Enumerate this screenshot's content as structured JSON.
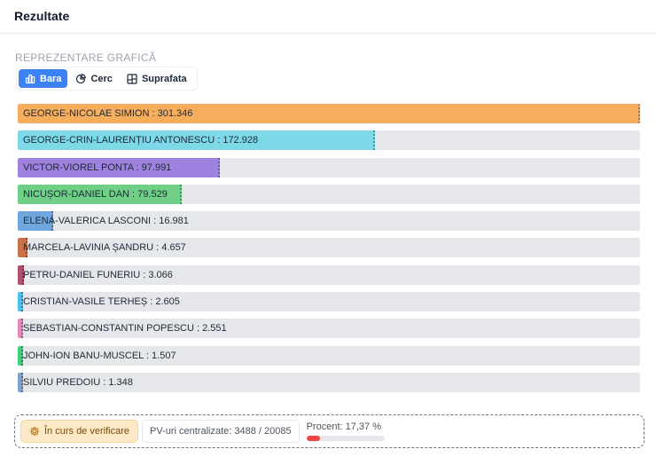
{
  "header": {
    "title": "Rezultate"
  },
  "section": {
    "label": "REPREZENTARE GRAFICĂ"
  },
  "tabs": [
    {
      "label": "Bara",
      "icon": "bar-chart-icon",
      "active": true
    },
    {
      "label": "Cerc",
      "icon": "pie-chart-icon",
      "active": false
    },
    {
      "label": "Suprafata",
      "icon": "treemap-icon",
      "active": false
    }
  ],
  "chart_data": {
    "type": "bar",
    "orientation": "horizontal",
    "max": 301346,
    "categories": [
      "GEORGE-NICOLAE SIMION",
      "GEORGE-CRIN-LAURENȚIU ANTONESCU",
      "VICTOR-VIOREL PONTA",
      "NICUȘOR-DANIEL DAN",
      "ELENA-VALERICA LASCONI",
      "MARCELA-LAVINIA ȘANDRU",
      "PETRU-DANIEL FUNERIU",
      "CRISTIAN-VASILE TERHEȘ",
      "SEBASTIAN-CONSTANTIN POPESCU",
      "JOHN-ION BANU-MUSCEL",
      "SILVIU PREDOIU"
    ],
    "values": [
      301346,
      172928,
      97991,
      79529,
      16981,
      4657,
      3066,
      2605,
      2551,
      1507,
      1348
    ],
    "labels": [
      "GEORGE-NICOLAE SIMION : 301.346",
      "GEORGE-CRIN-LAURENȚIU ANTONESCU : 172.928",
      "VICTOR-VIOREL PONTA : 97.991",
      "NICUȘOR-DANIEL DAN : 79.529",
      "ELENA-VALERICA LASCONI : 16.981",
      "MARCELA-LAVINIA ȘANDRU : 4.657",
      "PETRU-DANIEL FUNERIU : 3.066",
      "CRISTIAN-VASILE TERHEȘ : 2.605",
      "SEBASTIAN-CONSTANTIN POPESCU : 2.551",
      "JOHN-ION BANU-MUSCEL : 1.507",
      "SILVIU PREDOIU : 1.348"
    ],
    "colors": [
      "#f6ad5c",
      "#7dd8e8",
      "#9f82e0",
      "#6fcf86",
      "#6fa6dd",
      "#c8724c",
      "#b0506f",
      "#4cc0ee",
      "#e58ab8",
      "#3ed07a",
      "#7ea2c8"
    ]
  },
  "footer": {
    "status": {
      "label": "În curs de verificare",
      "icon": "gear-icon"
    },
    "pv": "PV-uri centralizate: 3488 / 20085",
    "progress": {
      "label": "Procent: 17,37 %",
      "value": 17.37
    }
  },
  "colors": {
    "accent": "#3b82f6",
    "progress": "#ef4444",
    "track": "#e5e7eb"
  }
}
